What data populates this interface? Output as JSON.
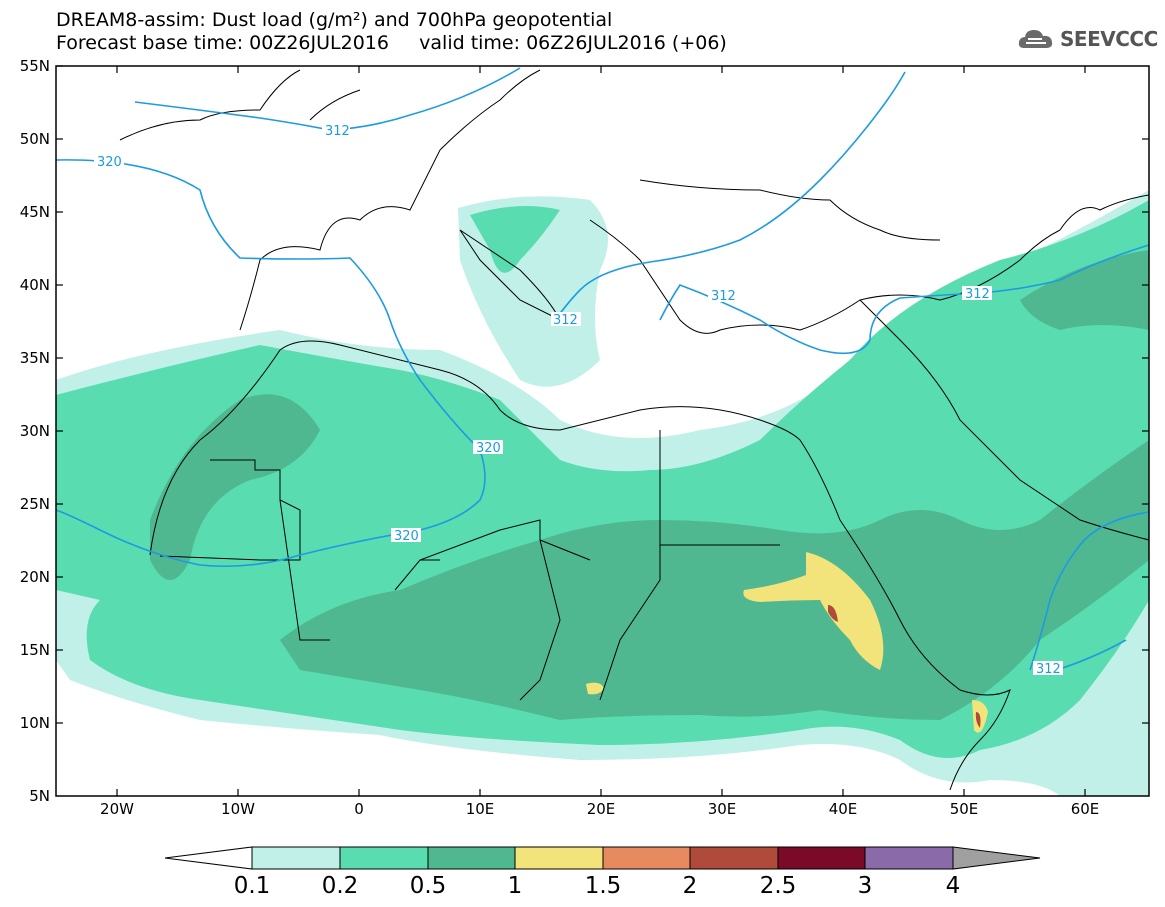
{
  "title_line1": "DREAM8-assim: Dust load (g/m²) and 700hPa geopotential",
  "title_line2": "Forecast base time: 00Z26JUL2016     valid time: 06Z26JUL2016 (+06)",
  "logo": {
    "text": "SEEVCCC",
    "icon": "cloud-icon"
  },
  "lat_labels": [
    "55N",
    "50N",
    "45N",
    "40N",
    "35N",
    "30N",
    "25N",
    "20N",
    "15N",
    "10N",
    "5N"
  ],
  "lon_labels": [
    "20W",
    "10W",
    "0",
    "10E",
    "20E",
    "30E",
    "40E",
    "50E",
    "60E"
  ],
  "contour_labels": [
    "312",
    "320",
    "312",
    "312",
    "320",
    "320",
    "312",
    "312"
  ],
  "colorbar": {
    "ticks": [
      "0.1",
      "0.2",
      "0.5",
      "1",
      "1.5",
      "2",
      "2.5",
      "3",
      "4"
    ],
    "colors": [
      "#c0f0e8",
      "#58dcb0",
      "#50b890",
      "#f2e47a",
      "#e88a60",
      "#b04a3a",
      "#7a0a28",
      "#8a6aa8"
    ],
    "under_color": "#ffffff",
    "over_color": "#a0a0a0"
  },
  "colors": {
    "geopotential": "#1e9be0",
    "coast": "#000000"
  }
}
